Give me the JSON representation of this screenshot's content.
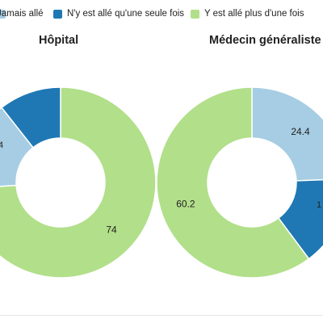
{
  "chart_data": [
    {
      "type": "donut",
      "title": "Hôpital",
      "slices": [
        {
          "category": "Jamais allé",
          "value": 15.4,
          "label": ""
        },
        {
          "category": "N'y est allé qu'une seule fois",
          "value": 10.6,
          "label": ""
        },
        {
          "category": "Y est allé plus d'une fois",
          "value": 74,
          "label": "74"
        }
      ],
      "legend": "top"
    },
    {
      "type": "donut",
      "title": "Médecin généraliste",
      "slices": [
        {
          "category": "Jamais allé",
          "value": 24.4,
          "label": "24.4"
        },
        {
          "category": "N'y est allé qu'une seule fois",
          "value": 15.4,
          "label": ""
        },
        {
          "category": "Y est allé plus d'une fois",
          "value": 60.2,
          "label": "60.2"
        }
      ],
      "legend": "top"
    }
  ],
  "legend": {
    "items": [
      {
        "label": "Jamais allé",
        "color": "#a6cde3"
      },
      {
        "label": "N'y est allé qu'une seule fois",
        "color": "#1f78b4"
      },
      {
        "label": "Y est allé plus d'une fois",
        "color": "#b2df8a"
      }
    ]
  },
  "labels": {
    "hopital_slice_1_partial": "4",
    "medecin_slice_2_partial": "1"
  }
}
